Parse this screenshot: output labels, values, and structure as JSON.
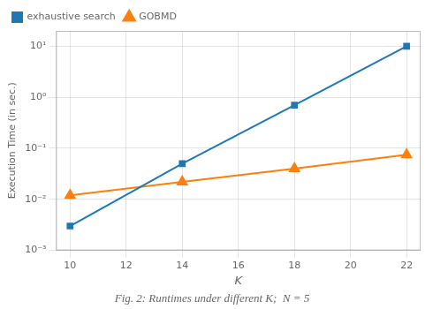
{
  "chart_data": {
    "type": "line",
    "x": [
      10,
      14,
      18,
      22
    ],
    "series": [
      {
        "name": "exhaustive search",
        "color": "#1f77b4",
        "marker": "square",
        "values": [
          0.003,
          0.05,
          0.7,
          10.0
        ]
      },
      {
        "name": "GOBMD",
        "color": "#ff7f0e",
        "marker": "triangle",
        "values": [
          0.012,
          0.022,
          0.04,
          0.075
        ]
      }
    ],
    "xlabel": "K",
    "ylabel": "Execution Time (in sec.)",
    "annotations": [
      "Fig. 2: Runtimes under different K;  N = 5"
    ],
    "xlim": [
      9.5,
      22.5
    ],
    "xticks": [
      10,
      12,
      14,
      16,
      18,
      20,
      22
    ],
    "ylim": [
      0.001,
      20.0
    ],
    "yticks": [
      {
        "value": 0.001,
        "label": "10⁻³"
      },
      {
        "value": 0.01,
        "label": "10⁻²"
      },
      {
        "value": 0.1,
        "label": "10⁻¹"
      },
      {
        "value": 1,
        "label": "10⁰"
      },
      {
        "value": 10,
        "label": "10¹"
      }
    ],
    "log": "y",
    "grid": true,
    "legend": "upper left"
  }
}
